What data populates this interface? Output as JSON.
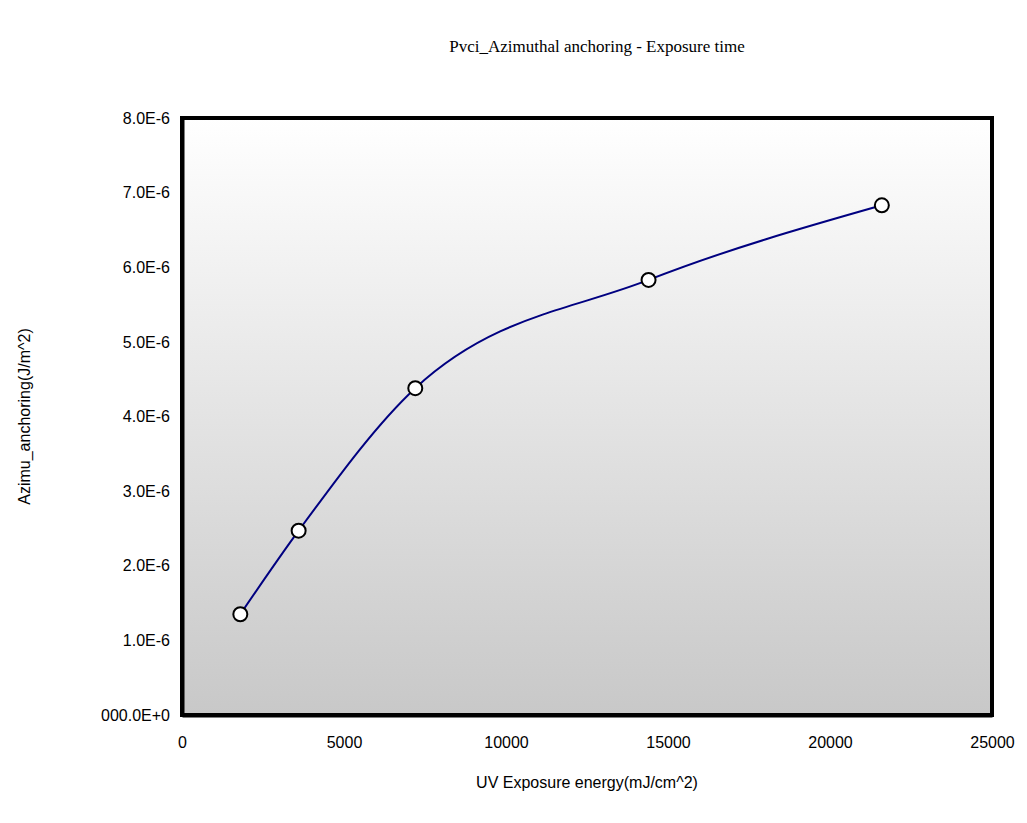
{
  "chart_data": {
    "type": "line",
    "title": "Pvci_Azimuthal anchoring - Exposure time",
    "x_label": "UV Exposure energy(mJ/cm^2)",
    "y_label": "Azimu_anchoring(J/m^2)",
    "x": [
      1800,
      3600,
      7200,
      14400,
      21600
    ],
    "values": [
      1.35e-06,
      2.47e-06,
      4.38e-06,
      5.83e-06,
      6.83e-06
    ],
    "color": "#000080",
    "marker": "circle",
    "line_style": "smooth",
    "xlim": [
      0,
      25000
    ],
    "xticks": [
      0,
      5000,
      10000,
      15000,
      20000,
      25000
    ],
    "ylim": [
      0,
      8e-06
    ],
    "yticks": [
      {
        "value": 0,
        "label": "000.0E+0"
      },
      {
        "value": 1e-06,
        "label": "1.0E-6"
      },
      {
        "value": 2e-06,
        "label": "2.0E-6"
      },
      {
        "value": 3e-06,
        "label": "3.0E-6"
      },
      {
        "value": 4e-06,
        "label": "4.0E-6"
      },
      {
        "value": 5e-06,
        "label": "5.0E-6"
      },
      {
        "value": 6e-06,
        "label": "6.0E-6"
      },
      {
        "value": 7e-06,
        "label": "7.0E-6"
      },
      {
        "value": 8e-06,
        "label": "8.0E-6"
      }
    ],
    "grid": false
  }
}
